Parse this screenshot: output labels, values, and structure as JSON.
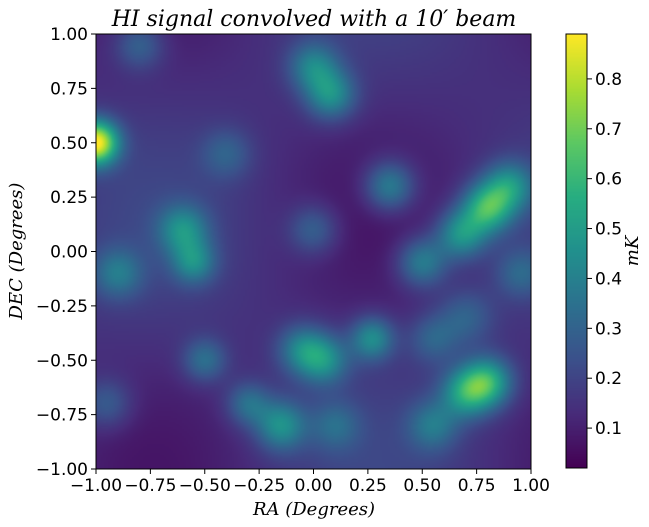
{
  "chart_data": {
    "type": "heatmap",
    "title": "HI signal convolved with a 10′ beam",
    "xlabel": "RA (Degrees)",
    "ylabel": "DEC (Degrees)",
    "colorbar_label": "mK",
    "colormap": "viridis",
    "xlim": [
      -1.0,
      1.0
    ],
    "ylim": [
      -1.0,
      1.0
    ],
    "x_ticks": [
      "−1.00",
      "−0.75",
      "−0.50",
      "−0.25",
      "0.00",
      "0.25",
      "0.50",
      "0.75",
      "1.00"
    ],
    "y_ticks": [
      "1.00",
      "0.75",
      "0.50",
      "0.25",
      "0.00",
      "−0.25",
      "−0.50",
      "−0.75",
      "−1.00"
    ],
    "colorbar_range": [
      0.02,
      0.89
    ],
    "colorbar_ticks": [
      "0.8",
      "0.7",
      "0.6",
      "0.5",
      "0.4",
      "0.3",
      "0.2",
      "0.1"
    ],
    "background_level": 0.14,
    "features": [
      {
        "ra": -1.0,
        "dec": 0.5,
        "value_mK": 0.89,
        "width_deg": 0.07
      },
      {
        "ra": -0.8,
        "dec": 0.95,
        "value_mK": 0.32,
        "width_deg": 0.08
      },
      {
        "ra": 0.0,
        "dec": 0.85,
        "value_mK": 0.4,
        "width_deg": 0.08
      },
      {
        "ra": 0.08,
        "dec": 0.72,
        "value_mK": 0.45,
        "width_deg": 0.08
      },
      {
        "ra": 0.35,
        "dec": 0.3,
        "value_mK": 0.43,
        "width_deg": 0.08
      },
      {
        "ra": -0.6,
        "dec": 0.1,
        "value_mK": 0.42,
        "width_deg": 0.08
      },
      {
        "ra": -0.55,
        "dec": -0.05,
        "value_mK": 0.4,
        "width_deg": 0.07
      },
      {
        "ra": -0.9,
        "dec": -0.1,
        "value_mK": 0.35,
        "width_deg": 0.08
      },
      {
        "ra": 0.0,
        "dec": 0.1,
        "value_mK": 0.32,
        "width_deg": 0.08
      },
      {
        "ra": 0.8,
        "dec": 0.2,
        "value_mK": 0.58,
        "width_deg": 0.08
      },
      {
        "ra": 0.68,
        "dec": 0.08,
        "value_mK": 0.48,
        "width_deg": 0.08
      },
      {
        "ra": 0.5,
        "dec": -0.05,
        "value_mK": 0.42,
        "width_deg": 0.08
      },
      {
        "ra": 0.9,
        "dec": 0.3,
        "value_mK": 0.45,
        "width_deg": 0.08
      },
      {
        "ra": 0.95,
        "dec": -0.1,
        "value_mK": 0.3,
        "width_deg": 0.08
      },
      {
        "ra": 0.7,
        "dec": -0.3,
        "value_mK": 0.3,
        "width_deg": 0.09
      },
      {
        "ra": 0.27,
        "dec": -0.4,
        "value_mK": 0.45,
        "width_deg": 0.07
      },
      {
        "ra": 0.05,
        "dec": -0.5,
        "value_mK": 0.42,
        "width_deg": 0.08
      },
      {
        "ra": -0.05,
        "dec": -0.45,
        "value_mK": 0.4,
        "width_deg": 0.08
      },
      {
        "ra": -0.5,
        "dec": -0.5,
        "value_mK": 0.35,
        "width_deg": 0.07
      },
      {
        "ra": -0.15,
        "dec": -0.8,
        "value_mK": 0.45,
        "width_deg": 0.08
      },
      {
        "ra": -0.3,
        "dec": -0.7,
        "value_mK": 0.35,
        "width_deg": 0.07
      },
      {
        "ra": 0.1,
        "dec": -0.8,
        "value_mK": 0.3,
        "width_deg": 0.08
      },
      {
        "ra": 0.55,
        "dec": -0.8,
        "value_mK": 0.35,
        "width_deg": 0.08
      },
      {
        "ra": 0.8,
        "dec": -0.6,
        "value_mK": 0.55,
        "width_deg": 0.08
      },
      {
        "ra": 0.7,
        "dec": -0.65,
        "value_mK": 0.48,
        "width_deg": 0.08
      },
      {
        "ra": -0.95,
        "dec": -0.7,
        "value_mK": 0.3,
        "width_deg": 0.08
      },
      {
        "ra": -0.4,
        "dec": 0.45,
        "value_mK": 0.28,
        "width_deg": 0.08
      },
      {
        "ra": 0.55,
        "dec": -0.4,
        "value_mK": 0.3,
        "width_deg": 0.08
      }
    ]
  }
}
